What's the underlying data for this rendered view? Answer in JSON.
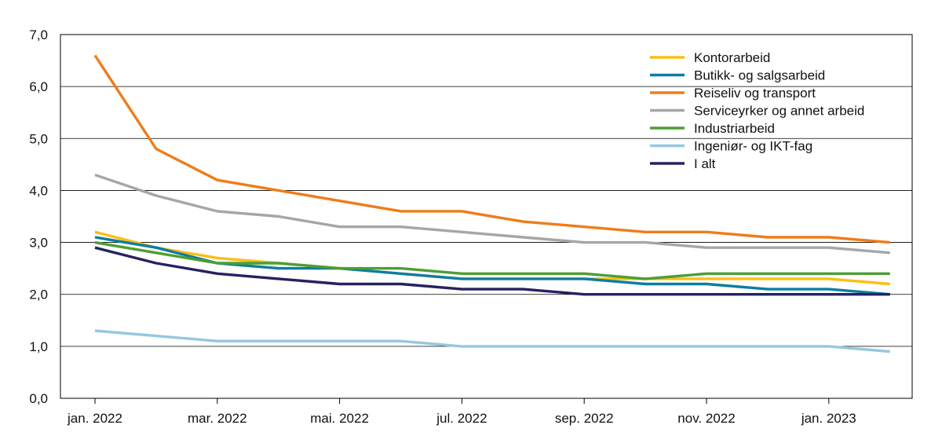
{
  "chart_data": {
    "type": "line",
    "title": "",
    "xlabel": "",
    "ylabel": "",
    "ylim": [
      0,
      7
    ],
    "y_ticks": [
      "0,0",
      "1,0",
      "2,0",
      "3,0",
      "4,0",
      "5,0",
      "6,0",
      "7,0"
    ],
    "x": [
      "jan. 2022",
      "feb. 2022",
      "mar. 2022",
      "apr. 2022",
      "mai. 2022",
      "jun. 2022",
      "jul. 2022",
      "aug. 2022",
      "sep. 2022",
      "okt. 2022",
      "nov. 2022",
      "des. 2022",
      "jan. 2023",
      "feb. 2023"
    ],
    "x_tick_labels": [
      "jan. 2022",
      "mar. 2022",
      "mai. 2022",
      "jul. 2022",
      "sep. 2022",
      "nov. 2022",
      "jan. 2023"
    ],
    "grid": "horizontal",
    "legend_position": "top-right",
    "series": [
      {
        "name": "Kontorarbeid",
        "color": "#F9C013",
        "values": [
          3.2,
          2.9,
          2.7,
          2.6,
          2.5,
          2.4,
          2.3,
          2.3,
          2.3,
          2.3,
          2.3,
          2.3,
          2.3,
          2.2
        ]
      },
      {
        "name": "Butikk- og salgsarbeid",
        "color": "#0C7EA3",
        "values": [
          3.1,
          2.9,
          2.6,
          2.5,
          2.5,
          2.4,
          2.3,
          2.3,
          2.3,
          2.2,
          2.2,
          2.1,
          2.1,
          2.0
        ]
      },
      {
        "name": "Reiseliv og transport",
        "color": "#EE7D1A",
        "values": [
          6.6,
          4.8,
          4.2,
          4.0,
          3.8,
          3.6,
          3.6,
          3.4,
          3.3,
          3.2,
          3.2,
          3.1,
          3.1,
          3.0
        ]
      },
      {
        "name": "Serviceyrker og annet arbeid",
        "color": "#A6A6A6",
        "values": [
          4.3,
          3.9,
          3.6,
          3.5,
          3.3,
          3.3,
          3.2,
          3.1,
          3.0,
          3.0,
          2.9,
          2.9,
          2.9,
          2.8
        ]
      },
      {
        "name": "Industriarbeid",
        "color": "#4E9E34",
        "values": [
          3.0,
          2.8,
          2.6,
          2.6,
          2.5,
          2.5,
          2.4,
          2.4,
          2.4,
          2.3,
          2.4,
          2.4,
          2.4,
          2.4
        ]
      },
      {
        "name": "Ingeniør- og IKT-fag",
        "color": "#95C8E0",
        "values": [
          1.3,
          1.2,
          1.1,
          1.1,
          1.1,
          1.1,
          1.0,
          1.0,
          1.0,
          1.0,
          1.0,
          1.0,
          1.0,
          0.9
        ]
      },
      {
        "name": "I alt",
        "color": "#262261",
        "values": [
          2.9,
          2.6,
          2.4,
          2.3,
          2.2,
          2.2,
          2.1,
          2.1,
          2.0,
          2.0,
          2.0,
          2.0,
          2.0,
          2.0
        ]
      }
    ]
  }
}
